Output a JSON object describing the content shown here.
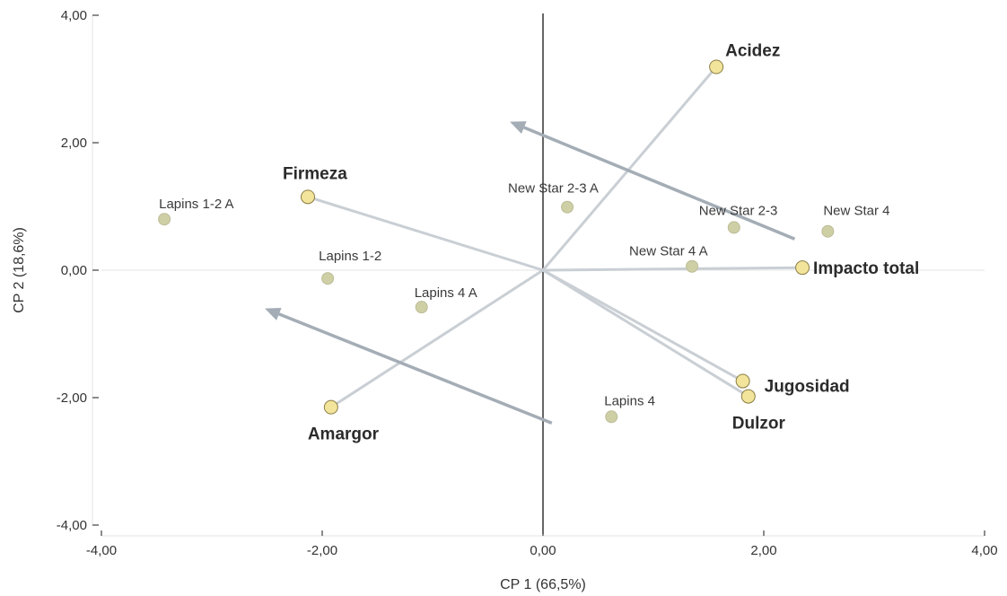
{
  "chart_data": {
    "type": "scatter",
    "subtype": "biplot",
    "xlabel": "CP 1 (66,5%)",
    "ylabel": "CP 2 (18,6%)",
    "xlim": [
      -4,
      4
    ],
    "ylim": [
      -4,
      4
    ],
    "x_ticks": [
      -4,
      -2,
      0,
      2,
      4
    ],
    "x_tick_labels": [
      "-4,00",
      "-2,00",
      "0,00",
      "2,00",
      "4,00"
    ],
    "y_ticks": [
      4,
      2,
      0,
      -2,
      -4
    ],
    "y_tick_labels": [
      "4,00",
      "2,00",
      "0,00",
      "-2,00",
      "-4,00"
    ],
    "grid": false,
    "colors": {
      "observation_point": "#cfcfa6",
      "variable_point": "#f2e49a",
      "vector_line": "#c9cfd4",
      "trend_arrow": "#a4adb6",
      "zero_axis": "#666666"
    },
    "observations": [
      {
        "label": "Lapins 1-2 A",
        "x": -3.43,
        "y": 0.8
      },
      {
        "label": "Lapins 1-2",
        "x": -1.95,
        "y": -0.13
      },
      {
        "label": "Lapins 4 A",
        "x": -1.1,
        "y": -0.58
      },
      {
        "label": "Lapins 4",
        "x": 0.62,
        "y": -2.3
      },
      {
        "label": "New Star 2-3 A",
        "x": 0.22,
        "y": 0.99
      },
      {
        "label": "New Star 2-3",
        "x": 1.73,
        "y": 0.67
      },
      {
        "label": "New Star 4",
        "x": 2.58,
        "y": 0.61
      },
      {
        "label": "New Star 4 A",
        "x": 1.35,
        "y": 0.06
      }
    ],
    "variables": [
      {
        "label": "Acidez",
        "x": 1.57,
        "y": 3.19
      },
      {
        "label": "Firmeza",
        "x": -2.13,
        "y": 1.15
      },
      {
        "label": "Impacto total",
        "x": 2.35,
        "y": 0.04
      },
      {
        "label": "Jugosidad",
        "x": 1.81,
        "y": -1.74
      },
      {
        "label": "Dulzor",
        "x": 1.86,
        "y": -1.98
      },
      {
        "label": "Amargor",
        "x": -1.92,
        "y": -2.15
      }
    ],
    "trend_arrows": [
      {
        "from": [
          2.28,
          0.49
        ],
        "to": [
          -0.3,
          2.33
        ]
      },
      {
        "from": [
          0.08,
          -2.4
        ],
        "to": [
          -2.52,
          -0.6
        ]
      }
    ]
  }
}
